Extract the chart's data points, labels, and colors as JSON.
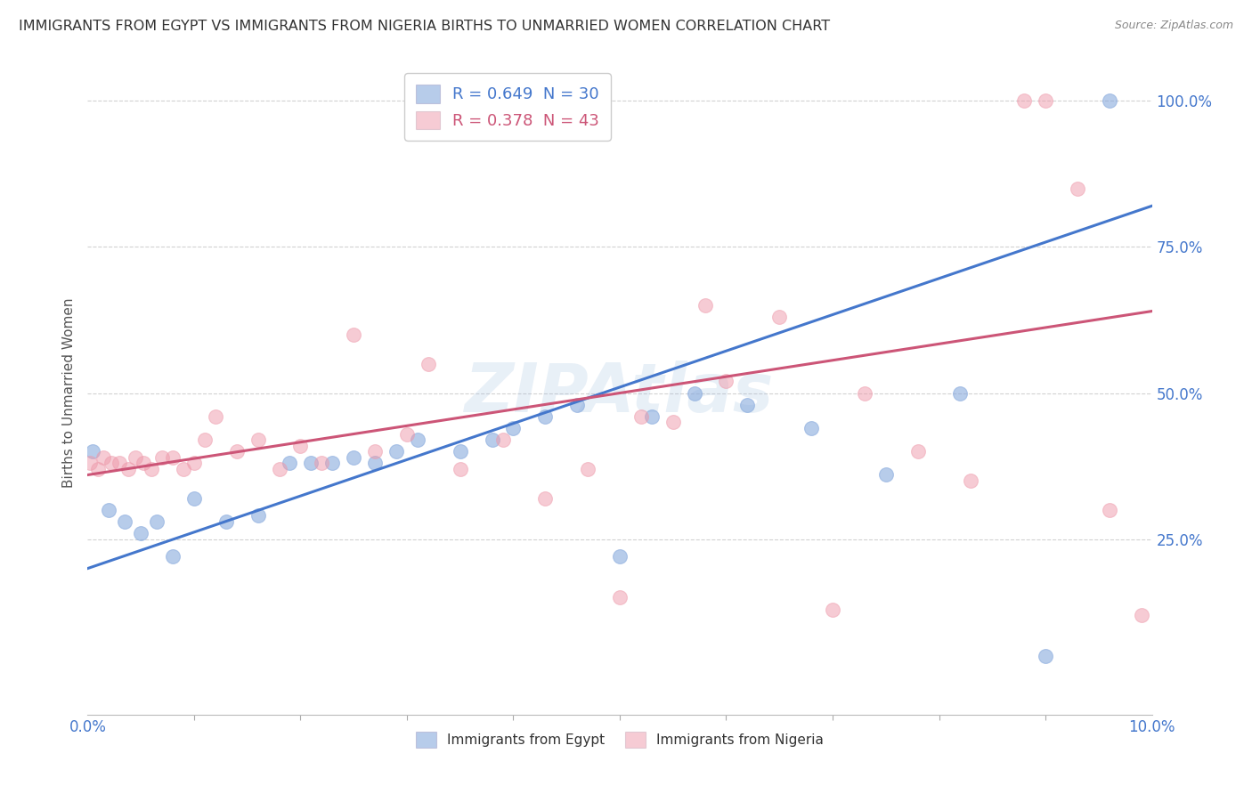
{
  "title": "IMMIGRANTS FROM EGYPT VS IMMIGRANTS FROM NIGERIA BIRTHS TO UNMARRIED WOMEN CORRELATION CHART",
  "source": "Source: ZipAtlas.com",
  "ylabel": "Births to Unmarried Women",
  "legend_entries": [
    {
      "label_r": "R = 0.649",
      "label_n": "N = 30",
      "color": "#6699cc"
    },
    {
      "label_r": "R = 0.378",
      "label_n": "N = 43",
      "color": "#e07090"
    }
  ],
  "legend_bottom": [
    "Immigrants from Egypt",
    "Immigrants from Nigeria"
  ],
  "watermark": "ZIPAtlas",
  "xlim": [
    0.0,
    10.0
  ],
  "ylim": [
    -5.0,
    105.0
  ],
  "ytick_positions": [
    25.0,
    50.0,
    75.0,
    100.0
  ],
  "blue_scatter_x": [
    0.05,
    0.2,
    0.35,
    0.5,
    0.65,
    0.8,
    1.0,
    1.3,
    1.6,
    1.9,
    2.1,
    2.3,
    2.5,
    2.7,
    2.9,
    3.1,
    3.5,
    3.8,
    4.0,
    4.3,
    4.6,
    5.0,
    5.3,
    5.7,
    6.2,
    6.8,
    7.5,
    8.2,
    9.0,
    9.6
  ],
  "blue_scatter_y": [
    40.0,
    30.0,
    28.0,
    26.0,
    28.0,
    22.0,
    32.0,
    28.0,
    29.0,
    38.0,
    38.0,
    38.0,
    39.0,
    38.0,
    40.0,
    42.0,
    40.0,
    42.0,
    44.0,
    46.0,
    48.0,
    22.0,
    46.0,
    50.0,
    48.0,
    44.0,
    36.0,
    50.0,
    5.0,
    100.0
  ],
  "pink_scatter_x": [
    0.02,
    0.1,
    0.15,
    0.22,
    0.3,
    0.38,
    0.45,
    0.52,
    0.6,
    0.7,
    0.8,
    0.9,
    1.0,
    1.1,
    1.2,
    1.4,
    1.6,
    1.8,
    2.0,
    2.2,
    2.5,
    2.7,
    3.0,
    3.2,
    3.5,
    3.9,
    4.3,
    4.7,
    5.0,
    5.2,
    5.5,
    5.8,
    6.0,
    6.5,
    7.0,
    7.3,
    7.8,
    8.3,
    8.8,
    9.0,
    9.3,
    9.6,
    9.9
  ],
  "pink_scatter_y": [
    38.0,
    37.0,
    39.0,
    38.0,
    38.0,
    37.0,
    39.0,
    38.0,
    37.0,
    39.0,
    39.0,
    37.0,
    38.0,
    42.0,
    46.0,
    40.0,
    42.0,
    37.0,
    41.0,
    38.0,
    60.0,
    40.0,
    43.0,
    55.0,
    37.0,
    42.0,
    32.0,
    37.0,
    15.0,
    46.0,
    45.0,
    65.0,
    52.0,
    63.0,
    13.0,
    50.0,
    40.0,
    35.0,
    100.0,
    100.0,
    85.0,
    30.0,
    12.0
  ],
  "blue_line_x": [
    0.0,
    10.0
  ],
  "blue_line_y": [
    20.0,
    82.0
  ],
  "pink_line_x": [
    0.0,
    10.0
  ],
  "pink_line_y": [
    36.0,
    64.0
  ],
  "blue_color": "#88aadd",
  "pink_color": "#ee99aa",
  "blue_line_color": "#4477cc",
  "pink_line_color": "#cc5577",
  "scatter_size": 130,
  "background_color": "#ffffff",
  "grid_color": "#cccccc",
  "axis_label_color": "#4477cc",
  "title_color": "#333333",
  "x_minor_ticks": [
    1.0,
    2.0,
    3.0,
    4.0,
    5.0,
    6.0,
    7.0,
    8.0,
    9.0
  ]
}
